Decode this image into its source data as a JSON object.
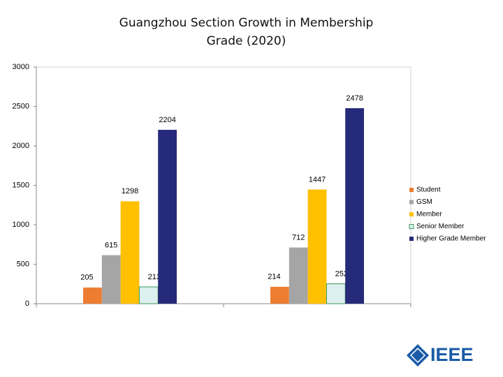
{
  "chart_data": {
    "type": "bar",
    "title": "Guangzhou Section Growth in Membership Grade (2020)",
    "categories": [
      null,
      null
    ],
    "series": [
      {
        "name": "Student",
        "color": "#ed7d31",
        "values": [
          205,
          214
        ]
      },
      {
        "name": "GSM",
        "color": "#a5a5a5",
        "values": [
          615,
          712
        ]
      },
      {
        "name": "Member",
        "color": "#ffc000",
        "values": [
          1298,
          1447
        ]
      },
      {
        "name": "Senior Member",
        "color": "#ddf0f0",
        "values": [
          213,
          252
        ]
      },
      {
        "name": "Higher Grade Member",
        "color": "#262a7a",
        "values": [
          2204,
          2478
        ]
      }
    ],
    "ylim": [
      0,
      3000
    ],
    "yticks": [
      0,
      500,
      1000,
      1500,
      2000,
      2500,
      3000
    ],
    "grid": false,
    "legend": "right"
  },
  "logo": "IEEE"
}
